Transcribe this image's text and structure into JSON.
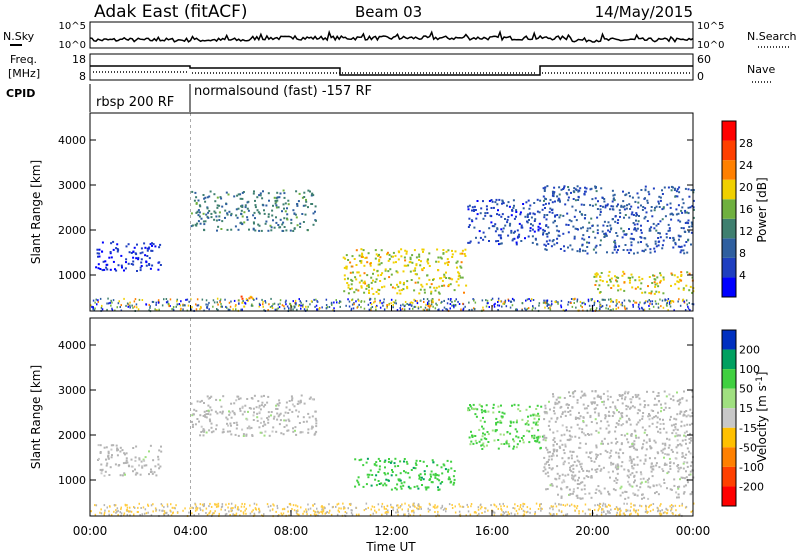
{
  "header": {
    "station": "Adak East (fitACF)",
    "beam": "Beam 03",
    "date": "14/May/2015"
  },
  "top_panel": {
    "nsky_label": "N.Sky",
    "nsearch_label": "N.Search",
    "freq_label_1": "Freq.",
    "freq_label_2": "[MHz]",
    "nave_label": "Nave",
    "cpid_label": "CPID",
    "noise_ticks": [
      "10^5",
      "10^0"
    ],
    "freq_ticks": [
      "18",
      "8"
    ],
    "nave_ticks": [
      "60",
      "0"
    ],
    "cpid_segments": [
      {
        "label": "rbsp 200 RF",
        "start_hour": 0,
        "end_hour": 4
      },
      {
        "label": "normalsound (fast) -157 RF",
        "start_hour": 4,
        "end_hour": 24
      }
    ]
  },
  "colors": {
    "power": [
      "#0000ff",
      "#1f3fc0",
      "#2f5f9f",
      "#3f7f6f",
      "#6fb03f",
      "#f0d000",
      "#ff8000",
      "#ff4000",
      "#ff0000"
    ],
    "velocity": [
      "#0030c0",
      "#00a060",
      "#40d040",
      "#a0e080",
      "#c8c8c8",
      "#ffc000",
      "#ff8000",
      "#ff4000",
      "#ff0000"
    ],
    "ground_scatter": "#b4b4b4"
  },
  "chart_data": [
    {
      "type": "heatmap",
      "name": "power",
      "xlabel": "Time UT",
      "ylabel": "Slant Range [km]",
      "xlim": [
        0,
        24
      ],
      "ylim": [
        200,
        4600
      ],
      "yticks": [
        "1000",
        "2000",
        "3000",
        "4000"
      ],
      "colorbar": {
        "label": "Power [dB]",
        "ticks": [
          "4",
          "8",
          "12",
          "16",
          "20",
          "24",
          "28"
        ],
        "range": [
          0,
          32
        ]
      },
      "features": [
        {
          "t0": 0.2,
          "t1": 2.8,
          "r0": 1100,
          "r1": 1800,
          "level": 3
        },
        {
          "t0": 4.0,
          "t1": 9.0,
          "r0": 2000,
          "r1": 2900,
          "level": 12
        },
        {
          "t0": 5.8,
          "t1": 6.5,
          "r0": 300,
          "r1": 550,
          "level": 24
        },
        {
          "t0": 10.0,
          "t1": 15.0,
          "r0": 600,
          "r1": 1600,
          "level": 20
        },
        {
          "t0": 15.0,
          "t1": 18.0,
          "r0": 1700,
          "r1": 2700,
          "level": 6
        },
        {
          "t0": 18.0,
          "t1": 24.0,
          "r0": 1500,
          "r1": 3000,
          "level": 8
        },
        {
          "t0": 20.0,
          "t1": 24.0,
          "r0": 600,
          "r1": 1100,
          "level": 20
        }
      ]
    },
    {
      "type": "heatmap",
      "name": "velocity",
      "xlabel": "Time UT",
      "ylabel": "Slant Range [km]",
      "xlim": [
        0,
        24
      ],
      "ylim": [
        200,
        4600
      ],
      "xticks": [
        "00:00",
        "04:00",
        "08:00",
        "12:00",
        "16:00",
        "20:00",
        "00:00"
      ],
      "yticks": [
        "1000",
        "2000",
        "3000",
        "4000"
      ],
      "colorbar": {
        "label": "Velocity [m s^-1]",
        "ticks": [
          "200",
          "100",
          "50",
          "15",
          "-15",
          "-50",
          "-100",
          "-200"
        ]
      },
      "features": [
        {
          "t0": 0.2,
          "t1": 2.8,
          "r0": 1100,
          "r1": 1800,
          "velocity": 0
        },
        {
          "t0": 4.0,
          "t1": 9.0,
          "r0": 2000,
          "r1": 2900,
          "velocity": 0
        },
        {
          "t0": 10.5,
          "t1": 14.5,
          "r0": 800,
          "r1": 1500,
          "velocity": 40
        },
        {
          "t0": 15.0,
          "t1": 18.0,
          "r0": 1700,
          "r1": 2700,
          "velocity": 20
        },
        {
          "t0": 18.0,
          "t1": 24.0,
          "r0": 600,
          "r1": 3000,
          "velocity": 0
        }
      ]
    }
  ]
}
